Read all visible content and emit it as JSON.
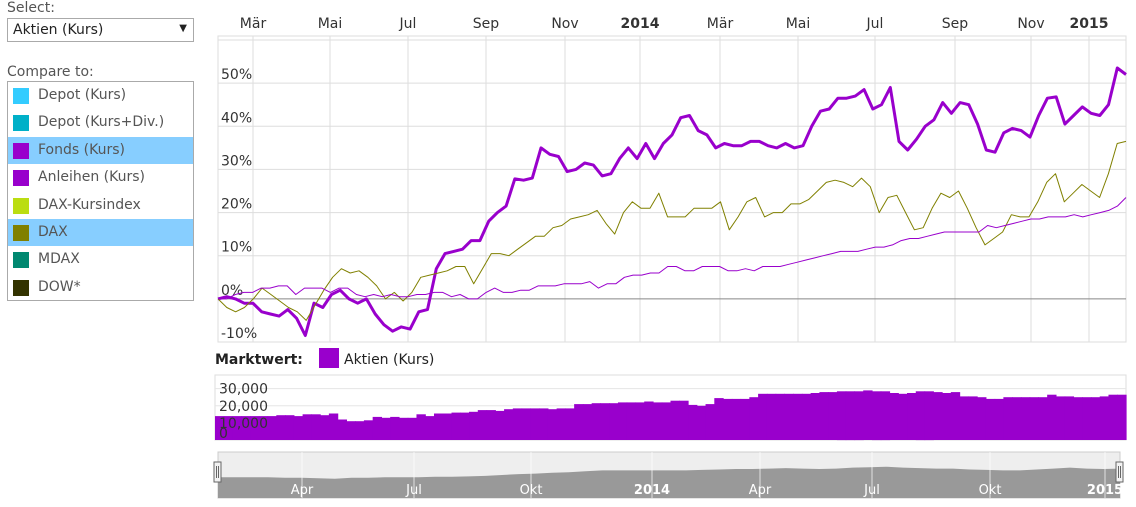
{
  "left_panel": {
    "select_label": "Select:",
    "select_value": "Aktien (Kurs)",
    "compare_label": "Compare to:",
    "compare_items": [
      {
        "label": "Depot (Kurs)",
        "color": "#33ccff",
        "selected": false
      },
      {
        "label": "Depot (Kurs+Div.)",
        "color": "#00b0c8",
        "selected": false
      },
      {
        "label": "Fonds (Kurs)",
        "color": "#9900cc",
        "selected": true
      },
      {
        "label": "Anleihen (Kurs)",
        "color": "#9900cc",
        "selected": false
      },
      {
        "label": "DAX-Kursindex",
        "color": "#bbdd11",
        "selected": false
      },
      {
        "label": "DAX",
        "color": "#808000",
        "selected": true
      },
      {
        "label": "MDAX",
        "color": "#008870",
        "selected": false
      },
      {
        "label": "DOW*",
        "color": "#333300",
        "selected": false
      }
    ]
  },
  "market_value": {
    "label": "Marktwert:",
    "legend_label": "Aktien (Kurs)",
    "color": "#9900cc"
  },
  "chart_data": [
    {
      "type": "line",
      "x_tick_labels": [
        "Mär",
        "Mai",
        "Jul",
        "Sep",
        "Nov",
        "2014",
        "Mär",
        "Mai",
        "Jul",
        "Sep",
        "Nov",
        "2015"
      ],
      "y_tick_labels": [
        "-10%",
        "0%",
        "10%",
        "20%",
        "30%",
        "40%",
        "50%"
      ],
      "ylim": [
        -10,
        60
      ],
      "grid": true,
      "series": [
        {
          "color": "#9900cc",
          "width": 3,
          "values": [
            0,
            0.5,
            0,
            -1,
            -1,
            -3,
            -3.5,
            -4,
            -2.5,
            -4.5,
            -8.5,
            -1,
            -2,
            1,
            2,
            0,
            -1,
            0,
            -3.5,
            -6,
            -7.5,
            -6.5,
            -7,
            -3,
            -2.5,
            7,
            10.5,
            11,
            11.5,
            13.5,
            13.5,
            18,
            20,
            21.5,
            27.8,
            27.5,
            28,
            35,
            33.5,
            33,
            29.5,
            30,
            31.5,
            31,
            28.5,
            29,
            32.5,
            35,
            32.5,
            36,
            32.5,
            36,
            38,
            42,
            42.5,
            39,
            38,
            35,
            36,
            35.5,
            35.5,
            36.5,
            36.5,
            35.5,
            35,
            36,
            35,
            35.5,
            40,
            43.5,
            44,
            46.5,
            46.5,
            47,
            48.5,
            44,
            45,
            49,
            36.5,
            34.5,
            37,
            40,
            41.5,
            45.5,
            43,
            45.5,
            45,
            40.5,
            34.5,
            34,
            38.5,
            39.5,
            39,
            37.5,
            42.5,
            46.5,
            46.8,
            40.5,
            42.5,
            44.5,
            43,
            42.5,
            45,
            53.5,
            52
          ]
        },
        {
          "color": "#808000",
          "width": 1,
          "values": [
            0,
            -2,
            -3,
            -2,
            0,
            2.5,
            1,
            -0.5,
            -2,
            -3,
            -5,
            -1.5,
            2,
            5,
            7,
            6,
            6.5,
            5,
            3,
            0,
            1.5,
            -0.5,
            1.5,
            5,
            5.5,
            6,
            6.5,
            7.5,
            7.5,
            3.5,
            7,
            10.5,
            10.5,
            10,
            11.5,
            13,
            14.5,
            14.5,
            16.5,
            17,
            18.5,
            19,
            19.5,
            20.5,
            17.5,
            15,
            20,
            22.5,
            21,
            21,
            24.5,
            19,
            19,
            19,
            21,
            21,
            21,
            22.5,
            16,
            19,
            22.5,
            23.5,
            19,
            20,
            20,
            22,
            22,
            23,
            25,
            27,
            27.5,
            27,
            26,
            28,
            26,
            20,
            23.5,
            24,
            20,
            16,
            16.5,
            21,
            24.5,
            23.5,
            25,
            21,
            16.5,
            12.5,
            14,
            15.5,
            19.5,
            19,
            19,
            22.5,
            27,
            29,
            22.5,
            24.5,
            26.5,
            25,
            23.5,
            29,
            36,
            36.5
          ]
        },
        {
          "color": "#9900cc",
          "width": 1,
          "values": [
            0,
            0,
            1,
            1.5,
            1.5,
            2.5,
            2.5,
            3,
            3,
            1,
            2.5,
            2.5,
            2.5,
            1.5,
            2.5,
            2.5,
            1,
            0.5,
            1,
            0.5,
            1,
            0.5,
            0.5,
            1,
            1,
            1.5,
            1.5,
            0.5,
            1,
            0,
            0,
            1.5,
            2.5,
            1.5,
            1.5,
            2,
            2,
            3,
            3,
            3,
            3.5,
            3.5,
            3.5,
            4,
            2.5,
            3.5,
            3.5,
            5,
            5.5,
            5.5,
            6,
            6,
            7.5,
            7.5,
            6.5,
            6.5,
            7.5,
            7.5,
            7.5,
            6.5,
            6.5,
            7,
            6.5,
            7.5,
            7.5,
            7.5,
            8,
            8.5,
            9,
            9.5,
            10,
            10.5,
            11,
            11,
            11,
            11.5,
            12,
            12,
            12.5,
            13.5,
            14,
            14,
            14.5,
            15,
            15.5,
            15.5,
            15.5,
            15.5,
            15.5,
            17,
            16.5,
            17,
            17.5,
            18,
            18.5,
            18.5,
            19,
            19,
            19,
            19.5,
            19,
            19.5,
            20,
            20.5,
            21.5,
            23.5
          ]
        }
      ]
    },
    {
      "type": "bar",
      "series_name": "Aktien (Kurs)",
      "y_tick_labels": [
        "30,000",
        "20,000",
        "10,000",
        "0"
      ],
      "ylim": [
        0,
        38000
      ],
      "color": "#9900cc",
      "values": [
        14000,
        14000,
        14000,
        14000,
        14000,
        14000,
        14000,
        14500,
        14500,
        14000,
        15000,
        15000,
        14500,
        15500,
        12000,
        11000,
        11000,
        11500,
        13500,
        13000,
        13500,
        13000,
        13000,
        15000,
        14000,
        15500,
        15500,
        16000,
        16000,
        16500,
        17500,
        17500,
        17000,
        18000,
        18500,
        18500,
        18500,
        18500,
        18000,
        18500,
        18500,
        21000,
        21000,
        21500,
        21500,
        21500,
        22000,
        22000,
        22000,
        22500,
        22000,
        22000,
        23000,
        23000,
        20500,
        20000,
        21000,
        24500,
        24000,
        24000,
        24000,
        25000,
        27000,
        27000,
        27000,
        27000,
        27000,
        27000,
        27500,
        28000,
        28000,
        28500,
        28500,
        28500,
        29000,
        28500,
        28500,
        27500,
        27000,
        27500,
        28500,
        28500,
        28000,
        27500,
        28000,
        25500,
        25500,
        25000,
        24000,
        24000,
        25000,
        25000,
        25000,
        25000,
        25000,
        26500,
        25500,
        25500,
        25000,
        25000,
        25000,
        25500,
        26500,
        26500
      ]
    },
    {
      "type": "area",
      "x_tick_labels": [
        "Apr",
        "Jul",
        "Okt",
        "2014",
        "Apr",
        "Jul",
        "Okt",
        "2015"
      ],
      "ylim": [
        0,
        1
      ],
      "color": "#999999",
      "values": [
        0.45,
        0.45,
        0.45,
        0.45,
        0.44,
        0.44,
        0.43,
        0.42,
        0.44,
        0.44,
        0.45,
        0.45,
        0.45,
        0.46,
        0.46,
        0.47,
        0.48,
        0.5,
        0.52,
        0.53,
        0.55,
        0.56,
        0.58,
        0.6,
        0.6,
        0.6,
        0.6,
        0.6,
        0.6,
        0.61,
        0.62,
        0.63,
        0.63,
        0.64,
        0.65,
        0.64,
        0.63,
        0.64,
        0.66,
        0.67,
        0.68,
        0.66,
        0.65,
        0.64,
        0.64,
        0.62,
        0.61,
        0.6,
        0.6,
        0.62,
        0.64,
        0.66,
        0.64,
        0.63,
        0.64
      ]
    }
  ]
}
